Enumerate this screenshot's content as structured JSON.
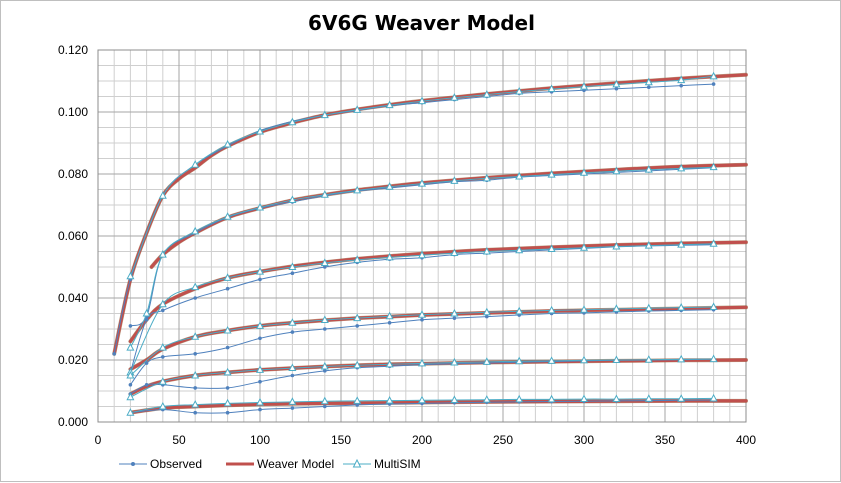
{
  "chart_data": {
    "type": "line",
    "title": "6V6G Weaver Model",
    "xlabel": "",
    "ylabel": "",
    "xlim": [
      0,
      400
    ],
    "ylim": [
      0,
      0.12
    ],
    "xticks": [
      "0",
      "50",
      "100",
      "150",
      "200",
      "250",
      "300",
      "350",
      "400"
    ],
    "yticks": [
      "0.000",
      "0.020",
      "0.040",
      "0.060",
      "0.080",
      "0.100",
      "0.120"
    ],
    "grid": true,
    "legend_position": "bottom",
    "colors": {
      "Observed": "#4f81bd",
      "Weaver Model": "#c0504d",
      "MultiSIM": "#4bacc6",
      "grid": "#a6a6a6"
    },
    "series": [
      {
        "name": "Observed",
        "curves": [
          {
            "x": [
              10,
              20,
              40,
              60,
              80,
              100,
              120,
              140,
              160,
              180,
              200,
              220,
              240,
              260,
              280,
              300,
              320,
              340,
              360,
              380
            ],
            "y": [
              0.022,
              0.046,
              0.073,
              0.083,
              0.089,
              0.094,
              0.097,
              0.099,
              0.1005,
              0.102,
              0.103,
              0.104,
              0.105,
              0.106,
              0.1065,
              0.107,
              0.1075,
              0.108,
              0.1085,
              0.109
            ]
          },
          {
            "x": [
              20,
              30,
              40,
              60,
              80,
              100,
              120,
              140,
              160,
              180,
              200,
              220,
              240,
              260,
              280,
              300,
              320,
              340,
              360,
              380
            ],
            "y": [
              0.031,
              0.034,
              0.054,
              0.061,
              0.066,
              0.069,
              0.071,
              0.073,
              0.0745,
              0.0755,
              0.0765,
              0.0775,
              0.078,
              0.079,
              0.0795,
              0.08,
              0.0805,
              0.081,
              0.0815,
              0.082
            ]
          },
          {
            "x": [
              20,
              30,
              40,
              60,
              80,
              100,
              120,
              140,
              160,
              180,
              200,
              220,
              240,
              260,
              280,
              300,
              320,
              340,
              360,
              380
            ],
            "y": [
              0.016,
              0.033,
              0.036,
              0.04,
              0.043,
              0.046,
              0.048,
              0.05,
              0.0515,
              0.0525,
              0.053,
              0.054,
              0.0545,
              0.055,
              0.0555,
              0.056,
              0.0565,
              0.0568,
              0.057,
              0.0572
            ]
          },
          {
            "x": [
              20,
              30,
              40,
              60,
              80,
              100,
              120,
              140,
              160,
              180,
              200,
              220,
              240,
              260,
              280,
              300,
              320,
              340,
              360,
              380
            ],
            "y": [
              0.012,
              0.019,
              0.021,
              0.022,
              0.024,
              0.027,
              0.029,
              0.03,
              0.031,
              0.032,
              0.033,
              0.0335,
              0.034,
              0.0345,
              0.035,
              0.0352,
              0.0355,
              0.0358,
              0.036,
              0.0362
            ]
          },
          {
            "x": [
              20,
              30,
              40,
              60,
              80,
              100,
              120,
              140,
              160,
              180,
              200,
              220,
              240,
              260,
              280,
              300,
              320,
              340,
              360,
              380
            ],
            "y": [
              0.009,
              0.012,
              0.012,
              0.011,
              0.011,
              0.013,
              0.015,
              0.0165,
              0.0175,
              0.018,
              0.0185,
              0.0188,
              0.019,
              0.0193,
              0.0195,
              0.0197,
              0.0199,
              0.02,
              0.0201,
              0.0203
            ]
          },
          {
            "x": [
              20,
              40,
              60,
              80,
              100,
              120,
              140,
              160,
              180,
              200,
              220,
              240,
              260,
              280,
              300,
              320,
              340,
              360,
              380
            ],
            "y": [
              0.003,
              0.004,
              0.003,
              0.003,
              0.004,
              0.0045,
              0.005,
              0.0055,
              0.0058,
              0.006,
              0.0062,
              0.0064,
              0.0065,
              0.0066,
              0.0067,
              0.0068,
              0.0069,
              0.007,
              0.0071
            ]
          }
        ]
      },
      {
        "name": "Weaver Model",
        "curves": [
          {
            "x": [
              10,
              20,
              30,
              40,
              50,
              60,
              70,
              80,
              100,
              120,
              140,
              160,
              180,
              200,
              240,
              280,
              320,
              360,
              400
            ],
            "y": [
              0.022,
              0.046,
              0.061,
              0.073,
              0.0785,
              0.082,
              0.086,
              0.089,
              0.0935,
              0.0965,
              0.099,
              0.1008,
              0.1023,
              0.1036,
              0.1058,
              0.1077,
              0.1093,
              0.1108,
              0.112
            ]
          },
          {
            "x": [
              33,
              40,
              50,
              60,
              80,
              100,
              120,
              140,
              160,
              180,
              200,
              240,
              280,
              320,
              360,
              400
            ],
            "y": [
              0.05,
              0.054,
              0.058,
              0.061,
              0.066,
              0.069,
              0.0715,
              0.0733,
              0.0748,
              0.076,
              0.0771,
              0.0788,
              0.0802,
              0.0814,
              0.0824,
              0.083
            ]
          },
          {
            "x": [
              20,
              30,
              40,
              60,
              80,
              100,
              120,
              140,
              160,
              180,
              200,
              240,
              280,
              320,
              360,
              400
            ],
            "y": [
              0.026,
              0.033,
              0.038,
              0.043,
              0.0465,
              0.0485,
              0.0502,
              0.0515,
              0.0526,
              0.0535,
              0.0543,
              0.0555,
              0.0564,
              0.0571,
              0.0576,
              0.058
            ]
          },
          {
            "x": [
              20,
              30,
              40,
              60,
              80,
              100,
              120,
              140,
              160,
              180,
              200,
              240,
              280,
              320,
              360,
              400
            ],
            "y": [
              0.017,
              0.02,
              0.0235,
              0.0275,
              0.0295,
              0.031,
              0.032,
              0.0328,
              0.0335,
              0.034,
              0.0345,
              0.0352,
              0.0358,
              0.0362,
              0.0366,
              0.037
            ]
          },
          {
            "x": [
              20,
              30,
              40,
              60,
              80,
              100,
              120,
              140,
              160,
              180,
              200,
              240,
              280,
              320,
              360,
              400
            ],
            "y": [
              0.009,
              0.0115,
              0.0131,
              0.015,
              0.016,
              0.0168,
              0.0174,
              0.0179,
              0.0183,
              0.0186,
              0.0188,
              0.0192,
              0.0195,
              0.0197,
              0.0199,
              0.02
            ]
          },
          {
            "x": [
              20,
              40,
              60,
              80,
              100,
              120,
              140,
              160,
              200,
              240,
              280,
              320,
              360,
              400
            ],
            "y": [
              0.003,
              0.0045,
              0.005,
              0.0054,
              0.0057,
              0.0059,
              0.006,
              0.0061,
              0.0063,
              0.0065,
              0.0066,
              0.0067,
              0.0068,
              0.0068
            ]
          }
        ]
      },
      {
        "name": "MultiSIM",
        "curves": [
          {
            "x": [
              20,
              40,
              60,
              80,
              100,
              120,
              140,
              160,
              180,
              200,
              220,
              240,
              260,
              280,
              300,
              320,
              340,
              360,
              380
            ],
            "y": [
              0.047,
              0.073,
              0.083,
              0.0895,
              0.0937,
              0.0967,
              0.099,
              0.1007,
              0.1022,
              0.1035,
              0.1046,
              0.1056,
              0.1066,
              0.1074,
              0.1082,
              0.1089,
              0.1096,
              0.1103,
              0.1115
            ]
          },
          {
            "x": [
              20,
              30,
              40,
              60,
              80,
              100,
              120,
              140,
              160,
              180,
              200,
              220,
              240,
              260,
              280,
              300,
              320,
              340,
              360,
              380
            ],
            "y": [
              0.024,
              0.035,
              0.054,
              0.0615,
              0.0662,
              0.0692,
              0.0716,
              0.0733,
              0.0747,
              0.0759,
              0.0769,
              0.0778,
              0.0786,
              0.0792,
              0.0798,
              0.0804,
              0.0809,
              0.0814,
              0.0818,
              0.0822
            ]
          },
          {
            "x": [
              20,
              40,
              60,
              80,
              100,
              120,
              140,
              160,
              180,
              200,
              220,
              240,
              260,
              280,
              300,
              320,
              340,
              360,
              380
            ],
            "y": [
              0.016,
              0.038,
              0.0435,
              0.0465,
              0.0485,
              0.05,
              0.0513,
              0.0523,
              0.0531,
              0.0538,
              0.0545,
              0.055,
              0.0554,
              0.0558,
              0.0562,
              0.0566,
              0.0569,
              0.0572,
              0.0575
            ]
          },
          {
            "x": [
              20,
              40,
              60,
              80,
              100,
              120,
              140,
              160,
              180,
              200,
              220,
              240,
              260,
              280,
              300,
              320,
              340,
              360,
              380
            ],
            "y": [
              0.015,
              0.024,
              0.0275,
              0.0295,
              0.031,
              0.032,
              0.0329,
              0.0335,
              0.0341,
              0.0346,
              0.035,
              0.0354,
              0.0357,
              0.036,
              0.0362,
              0.0365,
              0.0367,
              0.0369,
              0.0371
            ]
          },
          {
            "x": [
              20,
              40,
              60,
              80,
              100,
              120,
              140,
              160,
              180,
              200,
              220,
              240,
              260,
              280,
              300,
              320,
              340,
              360,
              380
            ],
            "y": [
              0.008,
              0.013,
              0.015,
              0.016,
              0.0168,
              0.0174,
              0.0179,
              0.0183,
              0.0186,
              0.0189,
              0.0192,
              0.0194,
              0.0196,
              0.0197,
              0.0199,
              0.02,
              0.0201,
              0.0202,
              0.0203
            ]
          },
          {
            "x": [
              20,
              40,
              60,
              80,
              100,
              120,
              140,
              160,
              180,
              200,
              220,
              240,
              260,
              280,
              300,
              320,
              340,
              360,
              380
            ],
            "y": [
              0.003,
              0.005,
              0.0056,
              0.006,
              0.0063,
              0.0065,
              0.0067,
              0.0068,
              0.0069,
              0.007,
              0.0071,
              0.0072,
              0.0073,
              0.0073,
              0.0074,
              0.0074,
              0.0075,
              0.0075,
              0.0076
            ]
          }
        ]
      }
    ]
  }
}
